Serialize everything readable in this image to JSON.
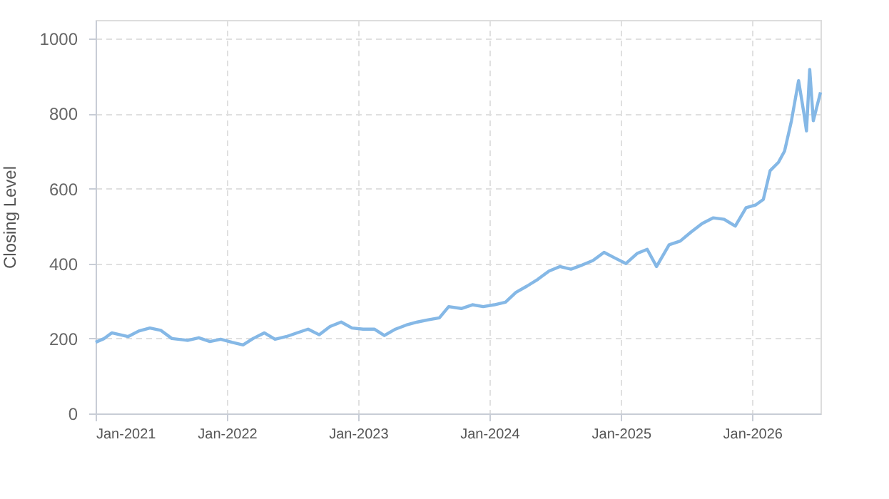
{
  "chart_data": {
    "type": "line",
    "ylabel": "Closing Level",
    "x": [
      "2021-01-01",
      "2021-01-25",
      "2021-02-15",
      "2021-04-01",
      "2021-05-01",
      "2021-06-01",
      "2021-07-01",
      "2021-08-01",
      "2021-09-15",
      "2021-10-15",
      "2021-11-15",
      "2021-12-15",
      "2022-01-15",
      "2022-02-15",
      "2022-03-15",
      "2022-04-15",
      "2022-05-15",
      "2022-06-15",
      "2022-07-15",
      "2022-08-15",
      "2022-09-15",
      "2022-10-15",
      "2022-11-15",
      "2022-12-15",
      "2023-01-15",
      "2023-02-15",
      "2023-03-15",
      "2023-04-15",
      "2023-05-15",
      "2023-06-15",
      "2023-07-15",
      "2023-08-15",
      "2023-09-10",
      "2023-10-15",
      "2023-11-15",
      "2023-12-15",
      "2024-01-15",
      "2024-02-15",
      "2024-03-15",
      "2024-04-15",
      "2024-05-15",
      "2024-06-15",
      "2024-07-15",
      "2024-08-15",
      "2024-09-15",
      "2024-10-15",
      "2024-11-15",
      "2024-12-15",
      "2025-01-15",
      "2025-02-15",
      "2025-03-15",
      "2025-04-10",
      "2025-05-15",
      "2025-06-15",
      "2025-07-15",
      "2025-08-15",
      "2025-09-15",
      "2025-10-15",
      "2025-11-15",
      "2025-12-15",
      "2026-01-10",
      "2026-02-01",
      "2026-02-20",
      "2026-03-15",
      "2026-04-01",
      "2026-04-20",
      "2026-05-10",
      "2026-05-25",
      "2026-06-01",
      "2026-06-10",
      "2026-06-20",
      "2026-07-10"
    ],
    "series": [
      {
        "color": "#85b8e6",
        "values": [
          190,
          200,
          215,
          205,
          220,
          228,
          222,
          200,
          195,
          202,
          192,
          198,
          190,
          183,
          200,
          215,
          198,
          205,
          215,
          225,
          210,
          232,
          244,
          228,
          225,
          225,
          208,
          225,
          236,
          244,
          250,
          255,
          285,
          280,
          290,
          285,
          290,
          297,
          323,
          340,
          358,
          380,
          392,
          385,
          396,
          408,
          430,
          415,
          400,
          427,
          438,
          392,
          450,
          460,
          484,
          507,
          522,
          518,
          500,
          549,
          556,
          571,
          648,
          670,
          700,
          780,
          888,
          800,
          754,
          918,
          781,
          857
        ]
      }
    ],
    "xlim": [
      "2021-01-01",
      "2026-07-10"
    ],
    "xticks": [
      {
        "value": "2021-01-01",
        "label": "Jan-2021"
      },
      {
        "value": "2022-01-01",
        "label": "Jan-2022"
      },
      {
        "value": "2023-01-01",
        "label": "Jan-2023"
      },
      {
        "value": "2024-01-01",
        "label": "Jan-2024"
      },
      {
        "value": "2025-01-01",
        "label": "Jan-2025"
      },
      {
        "value": "2026-01-01",
        "label": "Jan-2026"
      }
    ],
    "ylim": [
      0,
      1050
    ],
    "yticks": [
      0,
      200,
      400,
      600,
      800,
      1000
    ],
    "grid": true,
    "line_style": "solid",
    "marker": "none"
  }
}
